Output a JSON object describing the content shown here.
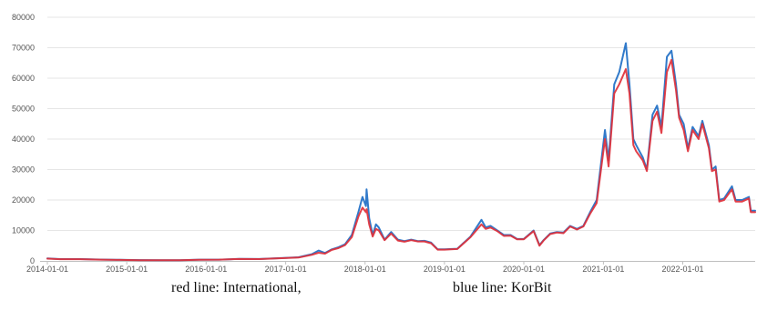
{
  "chart_data": {
    "type": "line",
    "title": "",
    "xlabel": "",
    "ylabel": "",
    "xlim": [
      "2014-01-01",
      "2022-11-30"
    ],
    "ylim": [
      0,
      80000
    ],
    "y_ticks": [
      0,
      10000,
      20000,
      30000,
      40000,
      50000,
      60000,
      70000,
      80000
    ],
    "y_tick_labels": [
      "0",
      "10000",
      "20000",
      "30000",
      "40000",
      "50000",
      "60000",
      "70000",
      "80000"
    ],
    "x_ticks": [
      "2014-01-01",
      "2015-01-01",
      "2016-01-01",
      "2017-01-01",
      "2018-01-01",
      "2019-01-01",
      "2020-01-01",
      "2021-01-01",
      "2022-01-01"
    ],
    "grid": true,
    "series": [
      {
        "name": "KorBit",
        "color": "#1f6fc5",
        "points": [
          [
            "2014-01-01",
            800
          ],
          [
            "2014-03-01",
            600
          ],
          [
            "2014-06-01",
            600
          ],
          [
            "2014-09-01",
            450
          ],
          [
            "2014-12-01",
            350
          ],
          [
            "2015-03-01",
            260
          ],
          [
            "2015-06-01",
            250
          ],
          [
            "2015-09-01",
            240
          ],
          [
            "2015-12-01",
            420
          ],
          [
            "2016-03-01",
            420
          ],
          [
            "2016-06-01",
            650
          ],
          [
            "2016-09-01",
            620
          ],
          [
            "2016-12-01",
            900
          ],
          [
            "2017-03-01",
            1200
          ],
          [
            "2017-05-01",
            2200
          ],
          [
            "2017-06-01",
            3400
          ],
          [
            "2017-07-01",
            2600
          ],
          [
            "2017-08-01",
            3800
          ],
          [
            "2017-09-01",
            4500
          ],
          [
            "2017-10-01",
            5500
          ],
          [
            "2017-11-01",
            8500
          ],
          [
            "2017-12-01",
            16000
          ],
          [
            "2017-12-20",
            21000
          ],
          [
            "2018-01-05",
            18000
          ],
          [
            "2018-01-08",
            23500
          ],
          [
            "2018-01-20",
            14000
          ],
          [
            "2018-02-05",
            8500
          ],
          [
            "2018-02-20",
            12000
          ],
          [
            "2018-03-05",
            11000
          ],
          [
            "2018-04-01",
            7000
          ],
          [
            "2018-05-01",
            9500
          ],
          [
            "2018-06-01",
            7000
          ],
          [
            "2018-07-01",
            6500
          ],
          [
            "2018-08-01",
            7000
          ],
          [
            "2018-09-01",
            6500
          ],
          [
            "2018-10-01",
            6600
          ],
          [
            "2018-11-01",
            6000
          ],
          [
            "2018-12-01",
            3800
          ],
          [
            "2019-01-01",
            3800
          ],
          [
            "2019-03-01",
            4000
          ],
          [
            "2019-05-01",
            8000
          ],
          [
            "2019-06-20",
            13500
          ],
          [
            "2019-07-10",
            11000
          ],
          [
            "2019-08-01",
            11500
          ],
          [
            "2019-09-01",
            10000
          ],
          [
            "2019-10-01",
            8500
          ],
          [
            "2019-11-01",
            8500
          ],
          [
            "2019-12-01",
            7200
          ],
          [
            "2020-01-01",
            7200
          ],
          [
            "2020-02-15",
            10000
          ],
          [
            "2020-03-13",
            5200
          ],
          [
            "2020-04-01",
            6800
          ],
          [
            "2020-05-01",
            9000
          ],
          [
            "2020-06-01",
            9500
          ],
          [
            "2020-07-01",
            9300
          ],
          [
            "2020-08-01",
            11500
          ],
          [
            "2020-09-01",
            10500
          ],
          [
            "2020-10-01",
            11500
          ],
          [
            "2020-11-01",
            16000
          ],
          [
            "2020-12-01",
            20000
          ],
          [
            "2021-01-08",
            43000
          ],
          [
            "2021-01-25",
            33000
          ],
          [
            "2021-02-20",
            58000
          ],
          [
            "2021-03-15",
            62000
          ],
          [
            "2021-04-14",
            71500
          ],
          [
            "2021-05-01",
            58000
          ],
          [
            "2021-05-19",
            40000
          ],
          [
            "2021-06-01",
            38000
          ],
          [
            "2021-07-01",
            34000
          ],
          [
            "2021-07-20",
            30000
          ],
          [
            "2021-08-15",
            48000
          ],
          [
            "2021-09-05",
            51000
          ],
          [
            "2021-09-25",
            44000
          ],
          [
            "2021-10-20",
            67000
          ],
          [
            "2021-11-10",
            69000
          ],
          [
            "2021-12-01",
            58000
          ],
          [
            "2021-12-15",
            48000
          ],
          [
            "2022-01-05",
            45000
          ],
          [
            "2022-01-25",
            37000
          ],
          [
            "2022-02-15",
            44000
          ],
          [
            "2022-03-15",
            41000
          ],
          [
            "2022-04-01",
            46000
          ],
          [
            "2022-05-01",
            38000
          ],
          [
            "2022-05-15",
            30000
          ],
          [
            "2022-06-01",
            31000
          ],
          [
            "2022-06-18",
            20000
          ],
          [
            "2022-07-10",
            20500
          ],
          [
            "2022-08-15",
            24500
          ],
          [
            "2022-09-01",
            20000
          ],
          [
            "2022-10-01",
            20000
          ],
          [
            "2022-11-01",
            21000
          ],
          [
            "2022-11-10",
            16500
          ],
          [
            "2022-11-30",
            16500
          ]
        ]
      },
      {
        "name": "International",
        "color": "#e0303a",
        "points": [
          [
            "2014-01-01",
            750
          ],
          [
            "2014-03-01",
            560
          ],
          [
            "2014-06-01",
            580
          ],
          [
            "2014-09-01",
            420
          ],
          [
            "2014-12-01",
            330
          ],
          [
            "2015-03-01",
            250
          ],
          [
            "2015-06-01",
            240
          ],
          [
            "2015-09-01",
            230
          ],
          [
            "2015-12-01",
            400
          ],
          [
            "2016-03-01",
            410
          ],
          [
            "2016-06-01",
            620
          ],
          [
            "2016-09-01",
            600
          ],
          [
            "2016-12-01",
            860
          ],
          [
            "2017-03-01",
            1100
          ],
          [
            "2017-05-01",
            2000
          ],
          [
            "2017-06-01",
            2700
          ],
          [
            "2017-07-01",
            2400
          ],
          [
            "2017-08-01",
            3600
          ],
          [
            "2017-09-01",
            4200
          ],
          [
            "2017-10-01",
            5200
          ],
          [
            "2017-11-01",
            7800
          ],
          [
            "2017-12-01",
            14500
          ],
          [
            "2017-12-20",
            17500
          ],
          [
            "2018-01-05",
            16000
          ],
          [
            "2018-01-08",
            17000
          ],
          [
            "2018-01-20",
            12000
          ],
          [
            "2018-02-05",
            8000
          ],
          [
            "2018-02-20",
            10500
          ],
          [
            "2018-03-05",
            10000
          ],
          [
            "2018-04-01",
            6800
          ],
          [
            "2018-05-01",
            9000
          ],
          [
            "2018-06-01",
            6700
          ],
          [
            "2018-07-01",
            6300
          ],
          [
            "2018-08-01",
            6800
          ],
          [
            "2018-09-01",
            6400
          ],
          [
            "2018-10-01",
            6400
          ],
          [
            "2018-11-01",
            5800
          ],
          [
            "2018-12-01",
            3700
          ],
          [
            "2019-01-01",
            3700
          ],
          [
            "2019-03-01",
            3900
          ],
          [
            "2019-05-01",
            7800
          ],
          [
            "2019-06-20",
            12000
          ],
          [
            "2019-07-10",
            10500
          ],
          [
            "2019-08-01",
            11000
          ],
          [
            "2019-09-01",
            9800
          ],
          [
            "2019-10-01",
            8200
          ],
          [
            "2019-11-01",
            8300
          ],
          [
            "2019-12-01",
            7100
          ],
          [
            "2020-01-01",
            7100
          ],
          [
            "2020-02-15",
            9800
          ],
          [
            "2020-03-13",
            5000
          ],
          [
            "2020-04-01",
            6700
          ],
          [
            "2020-05-01",
            8800
          ],
          [
            "2020-06-01",
            9300
          ],
          [
            "2020-07-01",
            9100
          ],
          [
            "2020-08-01",
            11300
          ],
          [
            "2020-09-01",
            10300
          ],
          [
            "2020-10-01",
            11300
          ],
          [
            "2020-11-01",
            15500
          ],
          [
            "2020-12-01",
            19000
          ],
          [
            "2021-01-08",
            40000
          ],
          [
            "2021-01-25",
            31000
          ],
          [
            "2021-02-20",
            55000
          ],
          [
            "2021-03-15",
            58000
          ],
          [
            "2021-04-14",
            63000
          ],
          [
            "2021-05-01",
            55000
          ],
          [
            "2021-05-19",
            38000
          ],
          [
            "2021-06-01",
            36000
          ],
          [
            "2021-07-01",
            33000
          ],
          [
            "2021-07-20",
            29500
          ],
          [
            "2021-08-15",
            46000
          ],
          [
            "2021-09-05",
            49000
          ],
          [
            "2021-09-25",
            42000
          ],
          [
            "2021-10-20",
            62000
          ],
          [
            "2021-11-10",
            66000
          ],
          [
            "2021-12-01",
            56000
          ],
          [
            "2021-12-15",
            47000
          ],
          [
            "2022-01-05",
            43000
          ],
          [
            "2022-01-25",
            36000
          ],
          [
            "2022-02-15",
            43000
          ],
          [
            "2022-03-15",
            40000
          ],
          [
            "2022-04-01",
            45000
          ],
          [
            "2022-05-01",
            37000
          ],
          [
            "2022-05-15",
            29500
          ],
          [
            "2022-06-01",
            30000
          ],
          [
            "2022-06-18",
            19500
          ],
          [
            "2022-07-10",
            20000
          ],
          [
            "2022-08-15",
            23500
          ],
          [
            "2022-09-01",
            19500
          ],
          [
            "2022-10-01",
            19500
          ],
          [
            "2022-11-01",
            20500
          ],
          [
            "2022-11-10",
            16000
          ],
          [
            "2022-11-30",
            16000
          ]
        ]
      }
    ],
    "draw_order": [
      "KorBit",
      "International"
    ]
  },
  "caption": {
    "red": "red line: International,",
    "blue": "blue line: KorBit"
  }
}
